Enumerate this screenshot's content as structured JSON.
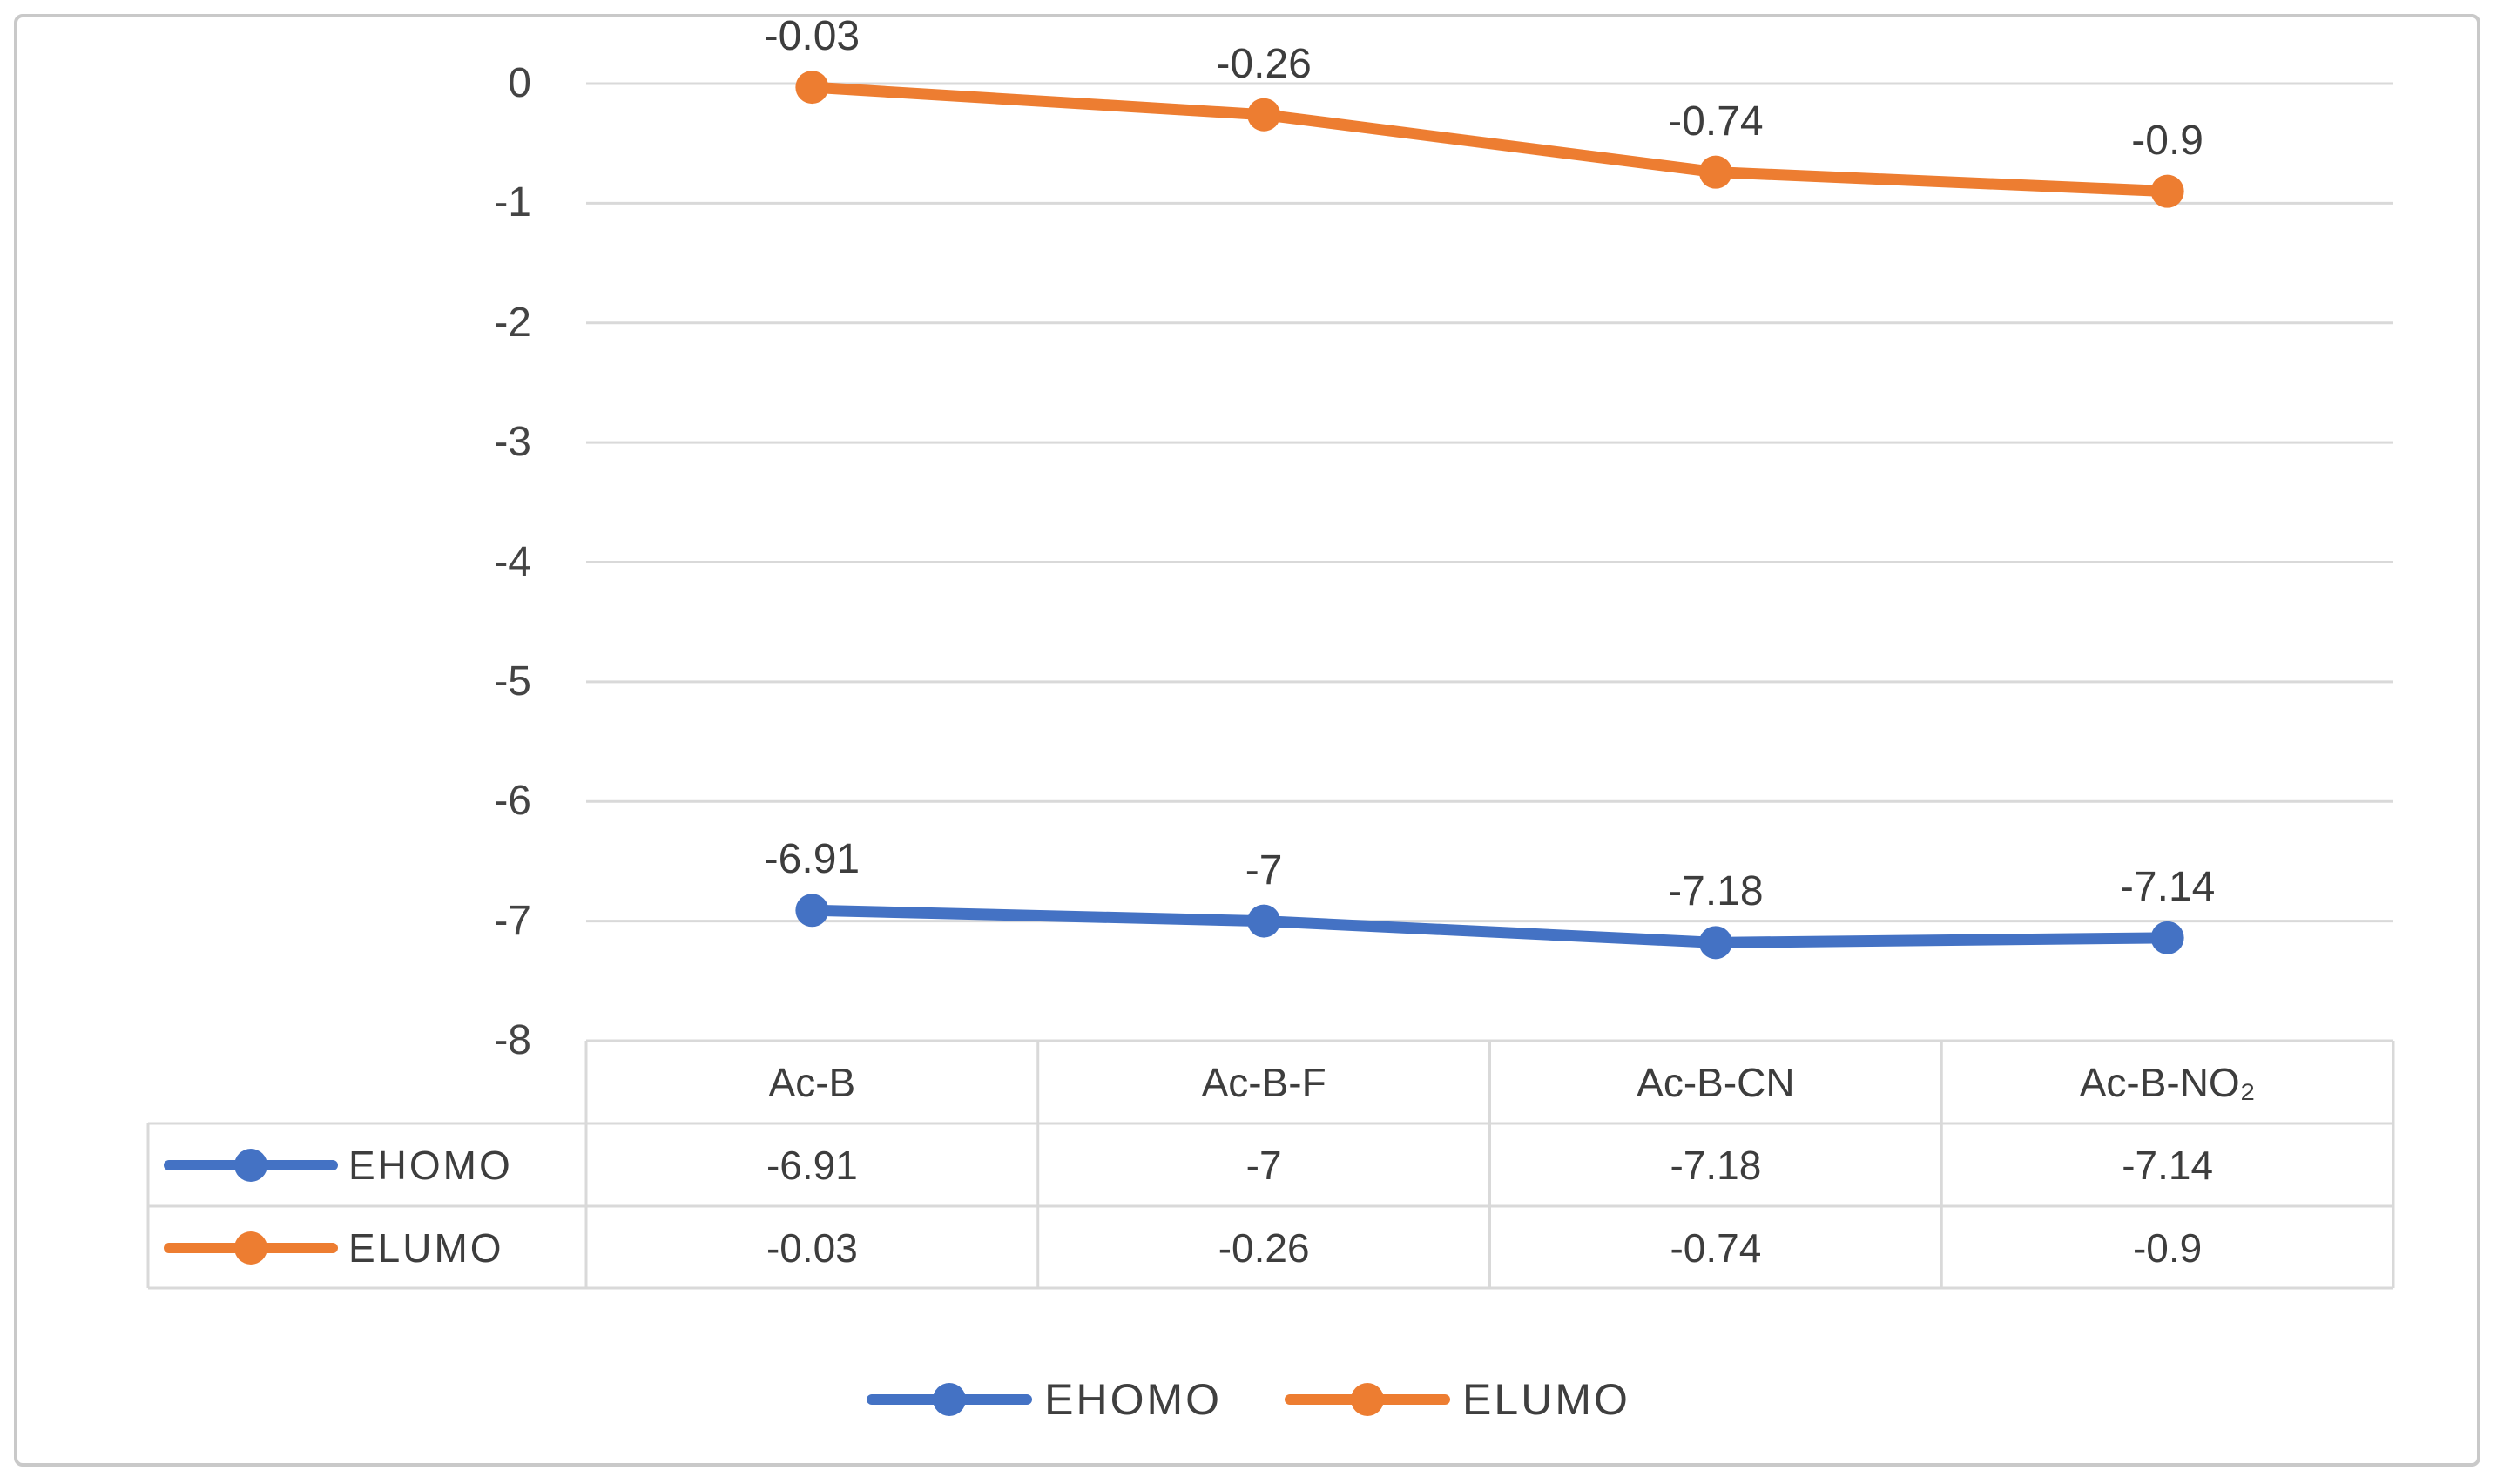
{
  "chart_data": {
    "type": "line",
    "title": "",
    "xlabel": "",
    "ylabel": "",
    "categories": [
      "Ac-B",
      "Ac-B-F",
      "Ac-B-CN",
      "Ac-B-NO₂"
    ],
    "series": [
      {
        "name": "EHOMO",
        "color": "#4472C4",
        "values": [
          -6.91,
          -7,
          -7.18,
          -7.14
        ],
        "labels": [
          "-6.91",
          "-7",
          "-7.18",
          "-7.14"
        ]
      },
      {
        "name": "ELUMO",
        "color": "#ED7D31",
        "values": [
          -0.03,
          -0.26,
          -0.74,
          -0.9
        ],
        "labels": [
          "-0.03",
          "-0.26",
          "-0.74",
          "-0.9"
        ]
      }
    ],
    "ylim": [
      -8,
      0
    ],
    "yticks": [
      "0",
      "-1",
      "-2",
      "-3",
      "-4",
      "-5",
      "-6",
      "-7",
      "-8"
    ],
    "grid": "horizontal",
    "legend_position": "bottom",
    "data_table_shown": true
  },
  "colors": {
    "gridline": "#D9D9D9",
    "table_border": "#D9D9D9",
    "outer_border": "#C9C9C9",
    "tick_text": "#444444",
    "label_text": "#3D3D3D"
  },
  "legend": {
    "items": [
      {
        "label": "EHOMO",
        "color": "#4472C4"
      },
      {
        "label": "ELUMO",
        "color": "#ED7D31"
      }
    ]
  }
}
